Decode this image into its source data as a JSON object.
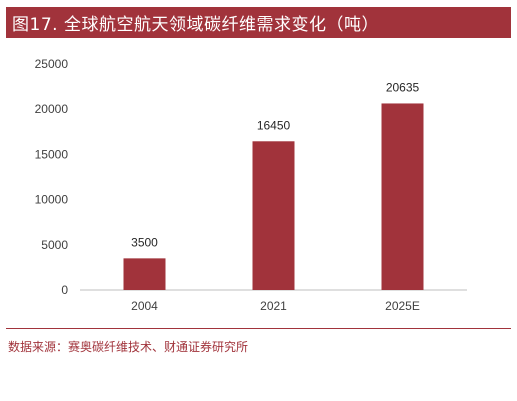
{
  "title": "图17. 全球航空航天领域碳纤维需求变化（吨）",
  "source": "数据来源：赛奥碳纤维技术、财通证券研究所",
  "colors": {
    "accent": "#a1333b",
    "bar": "#a1333b"
  },
  "chart_data": {
    "type": "bar",
    "categories": [
      "2004",
      "2021",
      "2025E"
    ],
    "values": [
      3500,
      16450,
      20635
    ],
    "data_labels": [
      "3500",
      "16450",
      "20635"
    ],
    "y_ticks": [
      "0",
      "5000",
      "10000",
      "15000",
      "20000",
      "25000"
    ],
    "ylim": [
      0,
      25000
    ],
    "grid": false,
    "legend": false
  }
}
